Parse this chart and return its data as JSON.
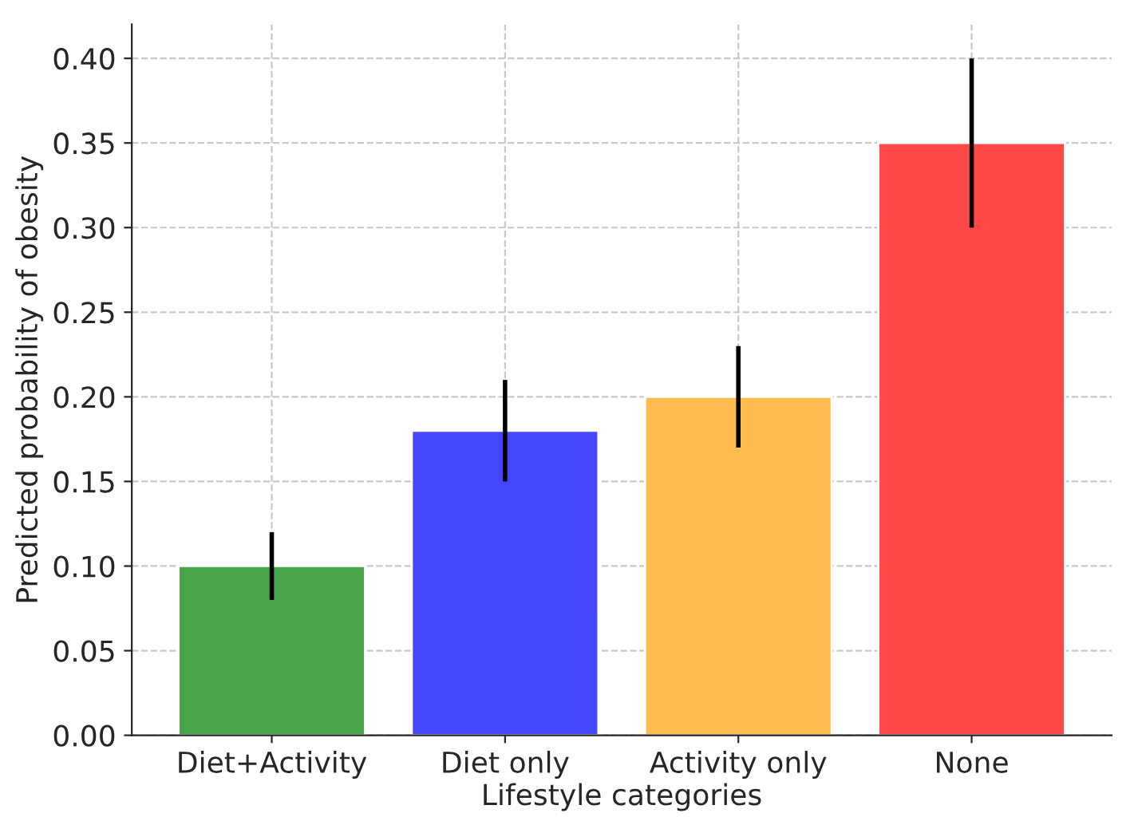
{
  "chart_data": {
    "type": "bar",
    "xlabel": "Lifestyle categories",
    "ylabel": "Predicted probability of obesity",
    "categories": [
      "Diet+Activity",
      "Diet only",
      "Activity only",
      "None"
    ],
    "values": [
      0.1,
      0.18,
      0.2,
      0.35
    ],
    "errors": [
      0.02,
      0.03,
      0.03,
      0.05
    ],
    "colors": [
      "#4aa44a",
      "#4646ff",
      "#ffbb4d",
      "#ff4848"
    ],
    "ylim": [
      0,
      0.42
    ],
    "yticks": [
      {
        "value": 0,
        "label": "0.00"
      },
      {
        "value": 0.05,
        "label": "0.05"
      },
      {
        "value": 0.1,
        "label": "0.10"
      },
      {
        "value": 0.15,
        "label": "0.15"
      },
      {
        "value": 0.2,
        "label": "0.20"
      },
      {
        "value": 0.25,
        "label": "0.25"
      },
      {
        "value": 0.3,
        "label": "0.30"
      },
      {
        "value": 0.35,
        "label": "0.35"
      },
      {
        "value": 0.4,
        "label": "0.40"
      }
    ],
    "grid": true
  }
}
